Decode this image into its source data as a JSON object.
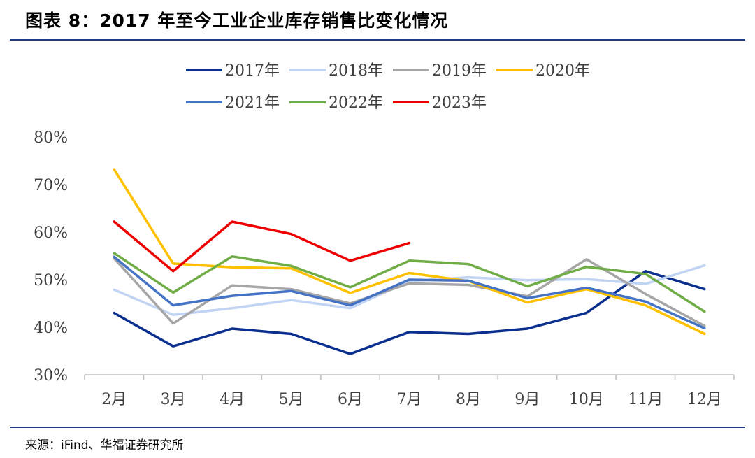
{
  "header": {
    "title": "图表 8：2017 年至今工业企业库存销售比变化情况"
  },
  "footer": {
    "source": "来源：iFind、华福证券研究所"
  },
  "chart_data": {
    "type": "line",
    "categories": [
      "2月",
      "3月",
      "4月",
      "5月",
      "6月",
      "7月",
      "8月",
      "9月",
      "10月",
      "11月",
      "12月"
    ],
    "ylim": [
      30,
      80
    ],
    "yticks": [
      30,
      40,
      50,
      60,
      70,
      80
    ],
    "ytick_labels": [
      "30%",
      "40%",
      "50%",
      "60%",
      "70%",
      "80%"
    ],
    "grid": false,
    "legend_position": "top",
    "series": [
      {
        "name": "2017年",
        "color": "#0a2f8f",
        "values": [
          43.0,
          36.0,
          39.7,
          38.6,
          34.4,
          39.0,
          38.6,
          39.7,
          43.0,
          51.8,
          48.0
        ]
      },
      {
        "name": "2018年",
        "color": "#c2d4f4",
        "values": [
          47.9,
          42.6,
          44.0,
          45.7,
          44.0,
          49.7,
          50.5,
          49.9,
          50.1,
          49.1,
          53.0
        ]
      },
      {
        "name": "2019年",
        "color": "#a6a6a6",
        "values": [
          54.5,
          40.8,
          48.8,
          48.0,
          45.0,
          49.2,
          48.9,
          46.5,
          54.3,
          47.0,
          40.3
        ]
      },
      {
        "name": "2020年",
        "color": "#ffc000",
        "values": [
          73.2,
          53.4,
          52.6,
          52.4,
          47.2,
          51.4,
          49.7,
          45.2,
          48.0,
          44.6,
          38.6
        ]
      },
      {
        "name": "2021年",
        "color": "#4472c4",
        "values": [
          54.8,
          44.6,
          46.6,
          47.6,
          44.6,
          50.0,
          49.8,
          46.1,
          48.3,
          45.4,
          39.8
        ]
      },
      {
        "name": "2022年",
        "color": "#70ad47",
        "values": [
          55.6,
          47.3,
          54.9,
          52.9,
          48.4,
          54.0,
          53.3,
          48.6,
          52.7,
          51.2,
          43.3
        ]
      },
      {
        "name": "2023年",
        "color": "#ee0000",
        "values": [
          62.2,
          51.8,
          62.2,
          59.6,
          54.0,
          57.7,
          null,
          null,
          null,
          null,
          null
        ]
      }
    ]
  }
}
